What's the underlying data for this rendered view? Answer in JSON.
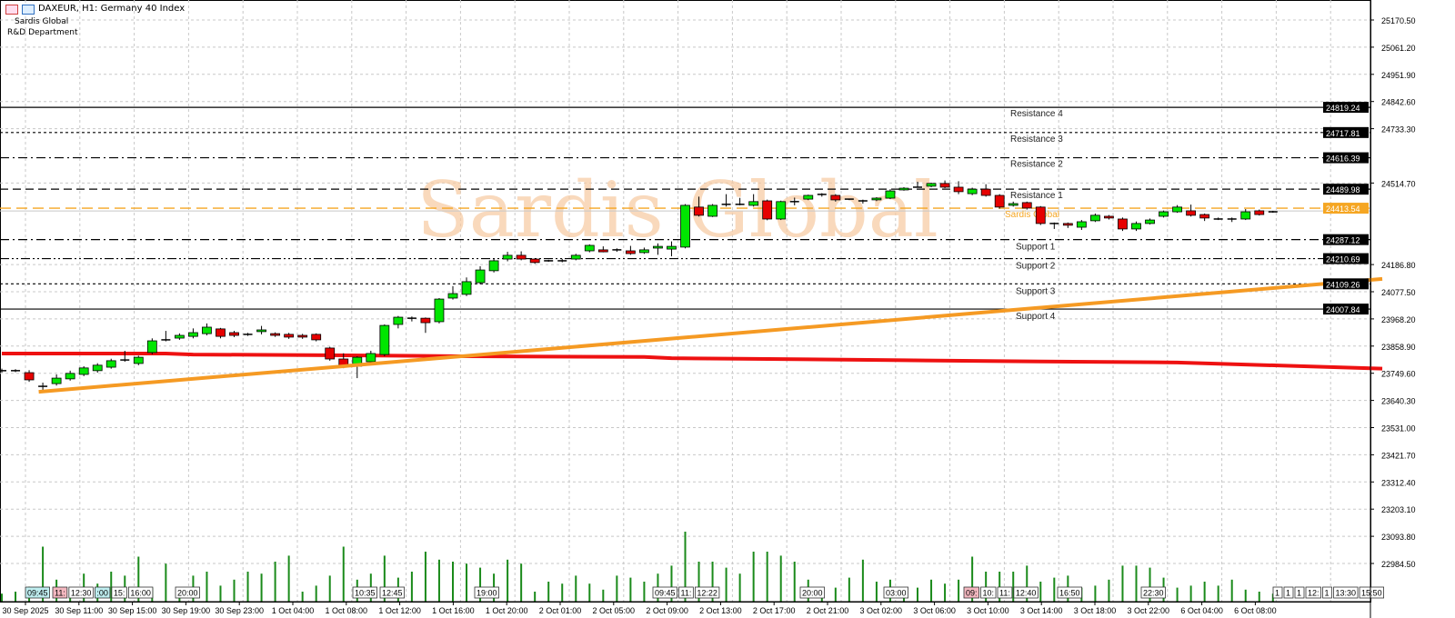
{
  "header": {
    "symbol_title": "DAXEUR, H1:  Germany 40 Index",
    "company": "Sardis Global",
    "department": "R&D Department",
    "icons": [
      "menu-list-icon",
      "chart-window-icon"
    ]
  },
  "watermark": "Sardis Global",
  "colors": {
    "bull": "#00e600",
    "bear": "#e60000",
    "moving_average": "#ee1111",
    "trendline": "#f59a23",
    "current_price": "#f5a623",
    "volume": "#1a8a1a",
    "grid": "#c8c8c8"
  },
  "chart_data": {
    "type": "candlestick",
    "symbol": "DAXEUR",
    "timeframe": "H1",
    "ylim": [
      22984.5,
      25170.5
    ],
    "price_ticks": [
      "25170.50",
      "25061.20",
      "24951.90",
      "24842.60",
      "24733.30",
      "24514.70",
      "24186.80",
      "24077.50",
      "23968.20",
      "23858.90",
      "23749.60",
      "23640.30",
      "23531.00",
      "23421.70",
      "23312.40",
      "23203.10",
      "23093.80",
      "22984.50"
    ],
    "time_labels": [
      "30 Sep 2025",
      "30 Sep 11:00",
      "30 Sep 15:00",
      "30 Sep 19:00",
      "30 Sep 23:00",
      "1 Oct 04:00",
      "1 Oct 08:00",
      "1 Oct 12:00",
      "1 Oct 16:00",
      "1 Oct 20:00",
      "2 Oct 01:00",
      "2 Oct 05:00",
      "2 Oct 09:00",
      "2 Oct 13:00",
      "2 Oct 17:00",
      "2 Oct 21:00",
      "3 Oct 02:00",
      "3 Oct 06:00",
      "3 Oct 10:00",
      "3 Oct 14:00",
      "3 Oct 18:00",
      "3 Oct 22:00",
      "6 Oct 04:00",
      "6 Oct 08:00"
    ],
    "candles_ohlc": [
      [
        23760,
        23768,
        23752,
        23760
      ],
      [
        23760,
        23766,
        23754,
        23760
      ],
      [
        23752,
        23762,
        23715,
        23723
      ],
      [
        23697,
        23712,
        23680,
        23697
      ],
      [
        23708,
        23745,
        23700,
        23730
      ],
      [
        23727,
        23760,
        23720,
        23749
      ],
      [
        23745,
        23778,
        23738,
        23771
      ],
      [
        23760,
        23790,
        23752,
        23782
      ],
      [
        23774,
        23808,
        23768,
        23800
      ],
      [
        23803,
        23840,
        23796,
        23803
      ],
      [
        23789,
        23820,
        23782,
        23814
      ],
      [
        23833,
        23890,
        23826,
        23880
      ],
      [
        23884,
        23920,
        23878,
        23884
      ],
      [
        23891,
        23910,
        23884,
        23902
      ],
      [
        23898,
        23930,
        23890,
        23913
      ],
      [
        23909,
        23950,
        23902,
        23935
      ],
      [
        23928,
        23932,
        23890,
        23898
      ],
      [
        23913,
        23920,
        23895,
        23902
      ],
      [
        23906,
        23912,
        23900,
        23906
      ],
      [
        23917,
        23940,
        23906,
        23924
      ],
      [
        23909,
        23914,
        23896,
        23902
      ],
      [
        23906,
        23912,
        23888,
        23895
      ],
      [
        23902,
        23908,
        23888,
        23895
      ],
      [
        23906,
        23910,
        23878,
        23884
      ],
      [
        23851,
        23856,
        23800,
        23807
      ],
      [
        23807,
        23830,
        23770,
        23774
      ],
      [
        23778,
        23818,
        23730,
        23814
      ],
      [
        23796,
        23840,
        23790,
        23829
      ],
      [
        23825,
        23946,
        23818,
        23942
      ],
      [
        23946,
        23980,
        23930,
        23975
      ],
      [
        23971,
        23978,
        23958,
        23971
      ],
      [
        23971,
        23974,
        23912,
        23953
      ],
      [
        23957,
        24052,
        23950,
        24048
      ],
      [
        24052,
        24100,
        24046,
        24070
      ],
      [
        24067,
        24135,
        24060,
        24118
      ],
      [
        24114,
        24180,
        24108,
        24165
      ],
      [
        24162,
        24210,
        24155,
        24202
      ],
      [
        24209,
        24238,
        24200,
        24224
      ],
      [
        24224,
        24240,
        24204,
        24209
      ],
      [
        24209,
        24212,
        24190,
        24195
      ],
      [
        24202,
        24206,
        24198,
        24202
      ],
      [
        24202,
        24210,
        24196,
        24202
      ],
      [
        24209,
        24230,
        24204,
        24224
      ],
      [
        24242,
        24268,
        24236,
        24264
      ],
      [
        24246,
        24260,
        24236,
        24238
      ],
      [
        24242,
        24252,
        24238,
        24246
      ],
      [
        24242,
        24262,
        24226,
        24231
      ],
      [
        24235,
        24255,
        24230,
        24246
      ],
      [
        24253,
        24272,
        24226,
        24260
      ],
      [
        24249,
        24280,
        24220,
        24260
      ],
      [
        24257,
        24430,
        24252,
        24425
      ],
      [
        24418,
        24460,
        24380,
        24385
      ],
      [
        24381,
        24430,
        24378,
        24425
      ],
      [
        24429,
        24470,
        24420,
        24429
      ],
      [
        24429,
        24455,
        24425,
        24429
      ],
      [
        24425,
        24470,
        24420,
        24440
      ],
      [
        24443,
        24448,
        24365,
        24370
      ],
      [
        24370,
        24444,
        24366,
        24440
      ],
      [
        24440,
        24456,
        24425,
        24440
      ],
      [
        24450,
        24468,
        24446,
        24465
      ],
      [
        24469,
        24474,
        24460,
        24469
      ],
      [
        24465,
        24470,
        24440,
        24447
      ],
      [
        24450,
        24452,
        24446,
        24450
      ],
      [
        24443,
        24448,
        24432,
        24443
      ],
      [
        24447,
        24458,
        24442,
        24454
      ],
      [
        24454,
        24490,
        24450,
        24483
      ],
      [
        24487,
        24498,
        24484,
        24494
      ],
      [
        24498,
        24520,
        24496,
        24498
      ],
      [
        24502,
        24516,
        24498,
        24513
      ],
      [
        24513,
        24525,
        24494,
        24498
      ],
      [
        24498,
        24522,
        24470,
        24480
      ],
      [
        24472,
        24496,
        24466,
        24490
      ],
      [
        24490,
        24510,
        24460,
        24465
      ],
      [
        24465,
        24470,
        24412,
        24418
      ],
      [
        24425,
        24440,
        24420,
        24432
      ],
      [
        24436,
        24440,
        24408,
        24414
      ],
      [
        24418,
        24422,
        24346,
        24352
      ],
      [
        24352,
        24356,
        24330,
        24348
      ],
      [
        24352,
        24356,
        24334,
        24345
      ],
      [
        24337,
        24366,
        24326,
        24359
      ],
      [
        24363,
        24392,
        24358,
        24385
      ],
      [
        24381,
        24386,
        24368,
        24374
      ],
      [
        24370,
        24376,
        24322,
        24330
      ],
      [
        24330,
        24360,
        24322,
        24352
      ],
      [
        24352,
        24372,
        24348,
        24366
      ],
      [
        24381,
        24404,
        24376,
        24399
      ],
      [
        24399,
        24426,
        24395,
        24418
      ],
      [
        24403,
        24428,
        24380,
        24385
      ],
      [
        24388,
        24392,
        24362,
        24374
      ],
      [
        24370,
        24376,
        24366,
        24370
      ],
      [
        24370,
        24376,
        24358,
        24370
      ],
      [
        24370,
        24410,
        24366,
        24399
      ],
      [
        24403,
        24408,
        24384,
        24388
      ],
      [
        24399,
        24403,
        24395,
        24399
      ]
    ],
    "volume_relative": [
      8,
      10,
      15,
      55,
      22,
      14,
      28,
      18,
      30,
      26,
      45,
      14,
      38,
      12,
      26,
      30,
      16,
      22,
      30,
      28,
      40,
      46,
      10,
      16,
      26,
      55,
      22,
      28,
      46,
      24,
      30,
      50,
      42,
      40,
      38,
      34,
      28,
      42,
      38,
      10,
      20,
      18,
      26,
      18,
      12,
      26,
      24,
      20,
      28,
      36,
      70,
      40,
      40,
      34,
      28,
      50,
      50,
      46,
      40,
      22,
      12,
      14,
      24,
      42,
      20,
      22,
      14,
      14,
      22,
      18,
      22,
      45,
      30,
      30,
      30,
      36,
      20,
      24,
      26,
      14,
      16,
      22,
      36,
      36,
      34,
      24,
      14,
      16,
      20,
      16,
      22,
      12,
      10,
      8
    ],
    "moving_average": [
      [
        0,
        23829
      ],
      [
        12,
        23829
      ],
      [
        14,
        23825
      ],
      [
        30,
        23820
      ],
      [
        34,
        23818
      ],
      [
        47,
        23815
      ],
      [
        49,
        23810
      ],
      [
        54,
        23808
      ],
      [
        66,
        23802
      ],
      [
        76,
        23797
      ],
      [
        86,
        23793
      ],
      [
        101,
        23768
      ]
    ],
    "trendline": [
      [
        2.7,
        23675
      ],
      [
        101,
        24129
      ]
    ],
    "levels": [
      {
        "name": "Resistance 4",
        "price": "24819.24",
        "style": "solid"
      },
      {
        "name": "Resistance 3",
        "price": "24717.81",
        "style": "dotted"
      },
      {
        "name": "Resistance 2",
        "price": "24616.39",
        "style": "dashdot"
      },
      {
        "name": "Resistance 1",
        "price": "24489.98",
        "style": "dashed"
      },
      {
        "name": "Support 1",
        "price": "24287.12",
        "style": "dashdot"
      },
      {
        "name": "Support 2",
        "price": "24210.69",
        "style": "dashdotdot"
      },
      {
        "name": "Support 3",
        "price": "24109.26",
        "style": "dotted"
      },
      {
        "name": "Support 4",
        "price": "24007.84",
        "style": "solid"
      }
    ],
    "current_price": {
      "label": "Sardis Global",
      "price": "24413.54"
    },
    "event_tags": [
      {
        "t": "09:45",
        "c": "cyan"
      },
      {
        "t": "11:",
        "c": "pink"
      },
      {
        "t": "12:30",
        "c": "white"
      },
      {
        "t": ":00",
        "c": "cyan"
      },
      {
        "t": "15:",
        "c": "white"
      },
      {
        "t": "16:00",
        "c": "white"
      },
      {
        "t": "20:00",
        "c": "white"
      },
      {
        "t": "10:35",
        "c": "white"
      },
      {
        "t": "12:45",
        "c": "white"
      },
      {
        "t": "19:00",
        "c": "white"
      },
      {
        "t": "09:45",
        "c": "white"
      },
      {
        "t": "11:",
        "c": "white"
      },
      {
        "t": "12:22",
        "c": "white"
      },
      {
        "t": "20:00",
        "c": "white"
      },
      {
        "t": "03:00",
        "c": "white"
      },
      {
        "t": "09:",
        "c": "pink"
      },
      {
        "t": "10:",
        "c": "white"
      },
      {
        "t": "11:",
        "c": "white"
      },
      {
        "t": "12:40",
        "c": "white"
      },
      {
        "t": "16:50",
        "c": "white"
      },
      {
        "t": "22:30",
        "c": "white"
      },
      {
        "t": "1",
        "c": "white"
      },
      {
        "t": "1",
        "c": "white"
      },
      {
        "t": "1",
        "c": "white"
      },
      {
        "t": "12:",
        "c": "white"
      },
      {
        "t": "1",
        "c": "white"
      },
      {
        "t": "13:30",
        "c": "white"
      },
      {
        "t": "15:50",
        "c": "white"
      }
    ]
  }
}
